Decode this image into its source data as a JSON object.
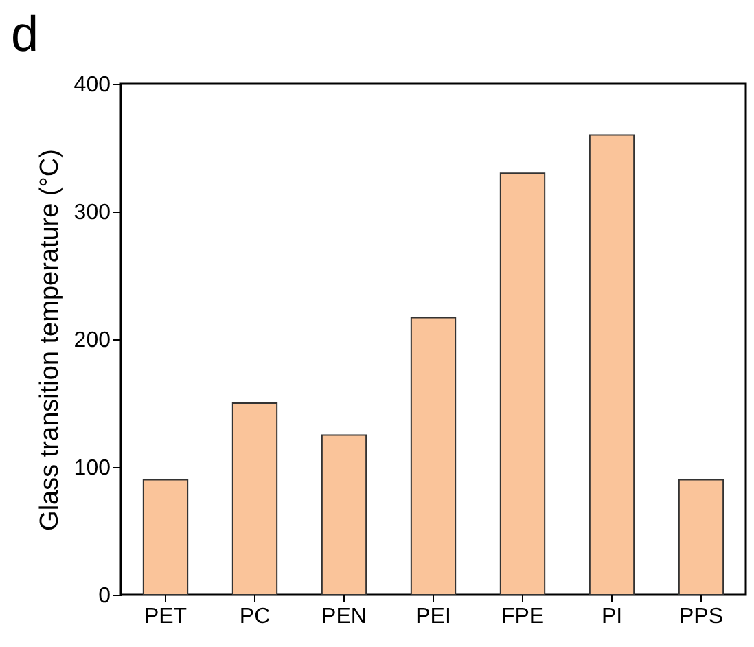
{
  "chart_data": {
    "type": "bar",
    "title": "d",
    "ylabel": "Glass transition temperature (°C)",
    "categories": [
      "PET",
      "PC",
      "PEN",
      "PEI",
      "FPE",
      "PI",
      "PPS"
    ],
    "values": [
      90,
      150,
      125,
      217,
      330,
      360,
      90
    ],
    "color": "#fac49a",
    "ylim": [
      0,
      400
    ],
    "yticks": [
      0,
      100,
      200,
      300,
      400
    ],
    "grid": false
  }
}
